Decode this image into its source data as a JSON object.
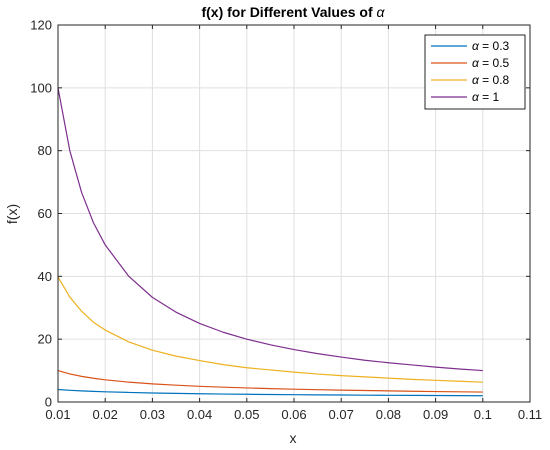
{
  "chart_data": {
    "type": "line",
    "title": "f(x) for Different Values of α",
    "title_parts": {
      "main": "f(x) for Different Values of ",
      "symbol": "α"
    },
    "xlabel": "x",
    "ylabel": "f(x)",
    "xlim": [
      0.01,
      0.11
    ],
    "ylim": [
      0,
      120
    ],
    "xticks": [
      0.01,
      0.02,
      0.03,
      0.04,
      0.05,
      0.06,
      0.07,
      0.08,
      0.09,
      0.1,
      0.11
    ],
    "xtick_labels": [
      "0.01",
      "0.02",
      "0.03",
      "0.04",
      "0.05",
      "0.06",
      "0.07",
      "0.08",
      "0.09",
      "0.1",
      "0.11"
    ],
    "yticks": [
      0,
      20,
      40,
      60,
      80,
      100,
      120
    ],
    "ytick_labels": [
      "0",
      "20",
      "40",
      "60",
      "80",
      "100",
      "120"
    ],
    "grid": true,
    "legend_position": "top-right",
    "x": [
      0.01,
      0.0125,
      0.015,
      0.0175,
      0.02,
      0.025,
      0.03,
      0.035,
      0.04,
      0.045,
      0.05,
      0.055,
      0.06,
      0.065,
      0.07,
      0.075,
      0.08,
      0.085,
      0.09,
      0.095,
      0.1
    ],
    "series": [
      {
        "name": "α = 0.3",
        "legend_symbol": "α",
        "legend_value": "= 0.3",
        "color": "#0072BD",
        "values": [
          3.98,
          3.72,
          3.53,
          3.37,
          3.25,
          3.05,
          2.87,
          2.74,
          2.63,
          2.53,
          2.46,
          2.38,
          2.33,
          2.27,
          2.22,
          2.17,
          2.13,
          2.1,
          2.06,
          2.03,
          2.0
        ]
      },
      {
        "name": "α = 0.5",
        "legend_symbol": "α",
        "legend_value": "= 0.5",
        "color": "#D95319",
        "values": [
          10.0,
          8.94,
          8.16,
          7.56,
          7.07,
          6.32,
          5.77,
          5.35,
          5.0,
          4.71,
          4.47,
          4.26,
          4.08,
          3.92,
          3.78,
          3.65,
          3.54,
          3.43,
          3.33,
          3.24,
          3.16
        ]
      },
      {
        "name": "α = 0.8",
        "legend_symbol": "α",
        "legend_value": "= 0.8",
        "color": "#EDB120",
        "values": [
          39.8,
          33.4,
          28.9,
          25.4,
          22.9,
          19.1,
          16.5,
          14.6,
          13.2,
          11.9,
          10.9,
          10.2,
          9.5,
          8.9,
          8.4,
          8.0,
          7.6,
          7.2,
          6.9,
          6.6,
          6.3
        ]
      },
      {
        "name": "α = 1",
        "legend_symbol": "α",
        "legend_value": "= 1",
        "color": "#7E2F8E",
        "values": [
          100.0,
          80.0,
          66.7,
          57.1,
          50.0,
          40.0,
          33.3,
          28.6,
          25.0,
          22.2,
          20.0,
          18.2,
          16.7,
          15.4,
          14.3,
          13.3,
          12.5,
          11.8,
          11.1,
          10.5,
          10.0
        ]
      }
    ]
  }
}
